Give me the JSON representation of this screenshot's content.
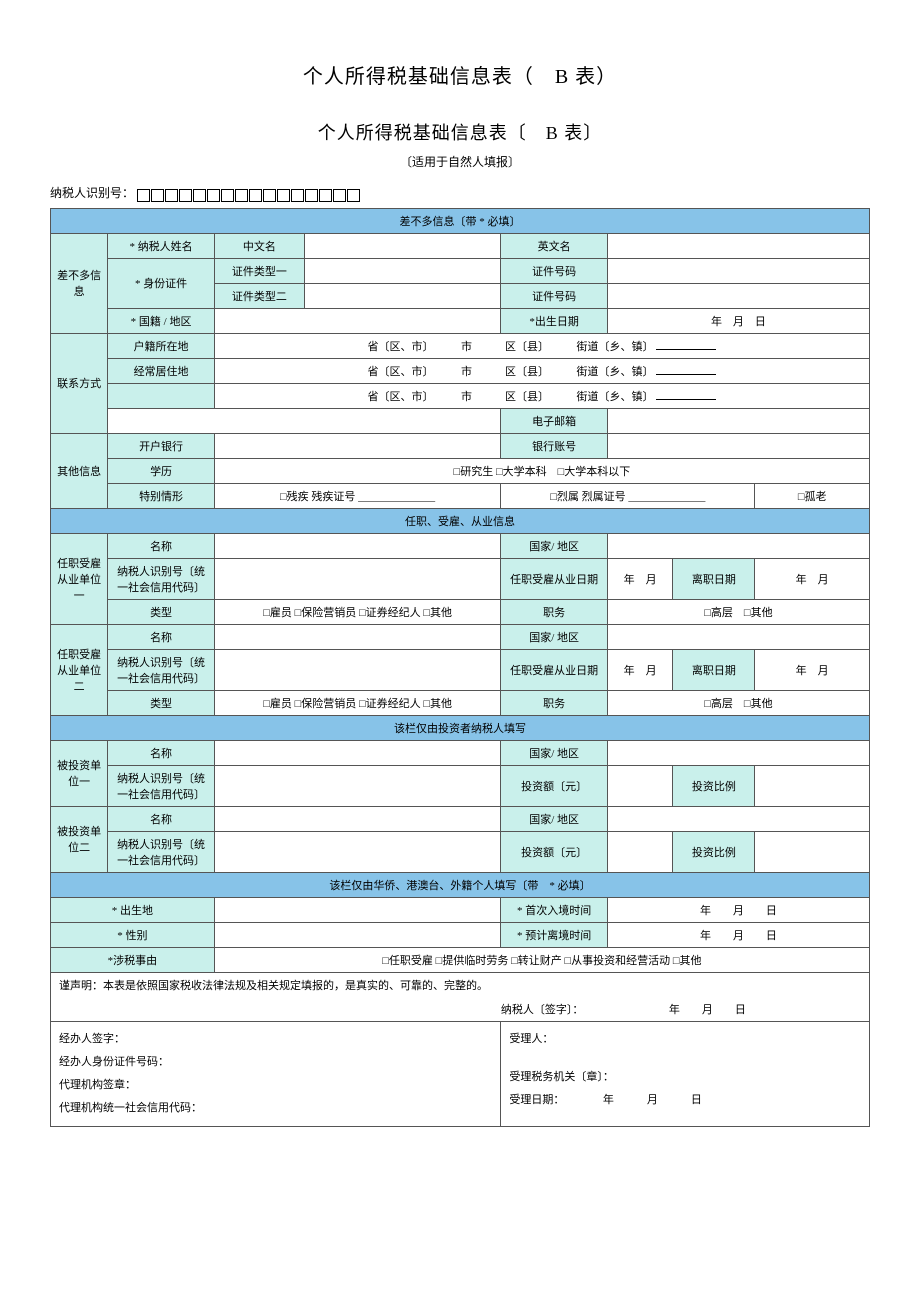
{
  "doc_title": "个人所得税基础信息表（　B 表）",
  "form_title": "个人所得税基础信息表〔　B 表〕",
  "subtitle": "〔适用于自然人填报〕",
  "taxpayer_id_label": "纳税人识别号：",
  "id_box_count": 16,
  "section": {
    "basic": "差不多信息〔带 * 必填〕",
    "employment": "任职、受雇、从业信息",
    "investor": "该栏仅由投资者纳税人填写",
    "foreign": "该栏仅由华侨、港澳台、外籍个人填写〔带　* 必填〕"
  },
  "basic": {
    "group": "差不多信息",
    "name": "* 纳税人姓名",
    "name_cn": "中文名",
    "name_en": "英文名",
    "id_doc": "* 身份证件",
    "id_type1": "证件类型一",
    "id_type2": "证件类型二",
    "id_no": "证件号码",
    "nationality": "* 国籍 / 地区",
    "dob": "*出生日期",
    "dob_val": "年　月　日"
  },
  "contact": {
    "group": "联系方式",
    "huji": "户籍所在地",
    "changju": "经常居住地",
    "addr_line": "省〔区、市〕　　　市　　　区〔县〕　　　街道〔乡、镇〕",
    "email": "电子邮箱"
  },
  "other": {
    "group": "其他信息",
    "bank": "开户银行",
    "bank_acct": "银行账号",
    "edu": "学历",
    "edu_opts": "□研究生 □大学本科　□大学本科以下",
    "special": "特别情形",
    "special_opts_l": "□残疾  残疾证号 ______________",
    "special_opts_m": "□烈属  烈属证号 ______________",
    "special_opts_r": "□孤老"
  },
  "emp": {
    "group1": "任职受雇从业单位一",
    "group2": "任职受雇从业单位二",
    "entity": "名称",
    "region": "国家/ 地区",
    "tax_id": "纳税人识别号〔统一社会信用代码〕",
    "hire_date": "任职受雇从业日期",
    "ym": "年　月",
    "leave_date": "离职日期",
    "type": "类型",
    "type_opts": "□雇员  □保险营销员  □证券经纪人  □其他",
    "position": "职务",
    "pos_opts": "□高层　□其他"
  },
  "inv": {
    "group1": "被投资单位一",
    "group2": "被投资单位二",
    "entity": "名称",
    "region": "国家/ 地区",
    "tax_id": "纳税人识别号〔统一社会信用代码〕",
    "amount": "投资额〔元〕",
    "ratio": "投资比例"
  },
  "foreign": {
    "birthplace": "* 出生地",
    "first_entry": "* 首次入境时间",
    "gender": "* 性别",
    "expected_leave": "* 预计离境时间",
    "date_val": "年　　月　　日",
    "tax_matter": "*涉税事由",
    "tax_matter_opts": "□任职受雇 □提供临时劳务 □转让财产 □从事投资和经营活动 □其他"
  },
  "decl": "谨声明：本表是依照国家税收法律法规及相关规定填报的，是真实的、可靠的、完整的。",
  "sign": {
    "taxpayer": "纳税人〔签字〕：",
    "date": "年　　月　　日",
    "agent_name": "经办人签字：",
    "agent_id": "经办人身份证件号码：",
    "agency_seal": "代理机构签章：",
    "agency_code": "代理机构统一社会信用代码：",
    "receiver": "受理人：",
    "authority": "受理税务机关〔章〕：",
    "receive_date": "受理日期：　　　　年　　　月　　　日"
  }
}
